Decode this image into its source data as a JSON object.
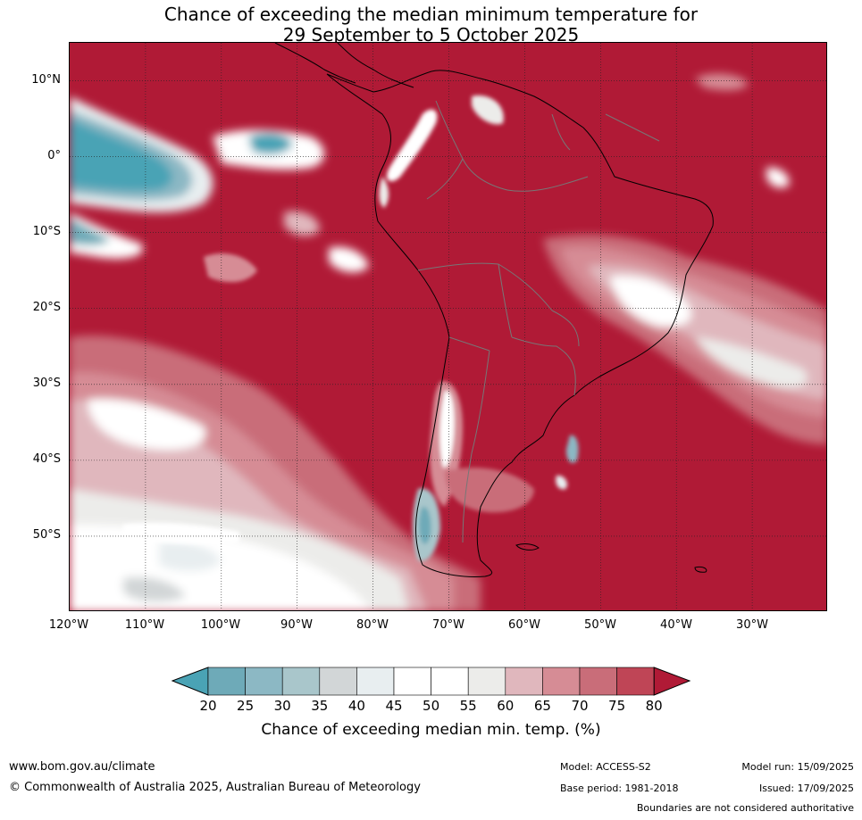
{
  "title": {
    "line1": "Chance of exceeding the median minimum temperature for",
    "line2": "29 September to 5 October 2025"
  },
  "map": {
    "latitude_labels": [
      "10°N",
      "0°",
      "10°S",
      "20°S",
      "30°S",
      "40°S",
      "50°S"
    ],
    "longitude_labels": [
      "120°W",
      "110°W",
      "100°W",
      "90°W",
      "80°W",
      "70°W",
      "60°W",
      "50°W",
      "40°W",
      "30°W"
    ],
    "extent": {
      "lon_min": -120,
      "lon_max": -20,
      "lat_min": -60,
      "lat_max": 15
    },
    "gridlines": true
  },
  "colorbar": {
    "ticks": [
      "20",
      "25",
      "30",
      "35",
      "40",
      "45",
      "50",
      "55",
      "60",
      "65",
      "70",
      "75",
      "80"
    ],
    "colors": [
      "#4aa3b5",
      "#6eaab8",
      "#8cb8c4",
      "#a9c6cb",
      "#d2d6d7",
      "#e8eef0",
      "#ffffff",
      "#ffffff",
      "#ececea",
      "#e0b7bd",
      "#d68c95",
      "#c96d79",
      "#bf4556",
      "#b01a36"
    ],
    "label": "Chance of exceeding median min. temp. (%)",
    "extends": "both"
  },
  "footer": {
    "url": "www.bom.gov.au/climate",
    "copyright": "© Commonwealth of Australia 2025, Australian Bureau of Meteorology",
    "model": "Model: ACCESS-S2",
    "base_period": "Base period: 1981-2018",
    "model_run": "Model run: 15/09/2025",
    "issued": "Issued: 17/09/2025",
    "boundaries": "Boundaries are not considered authoritative"
  }
}
